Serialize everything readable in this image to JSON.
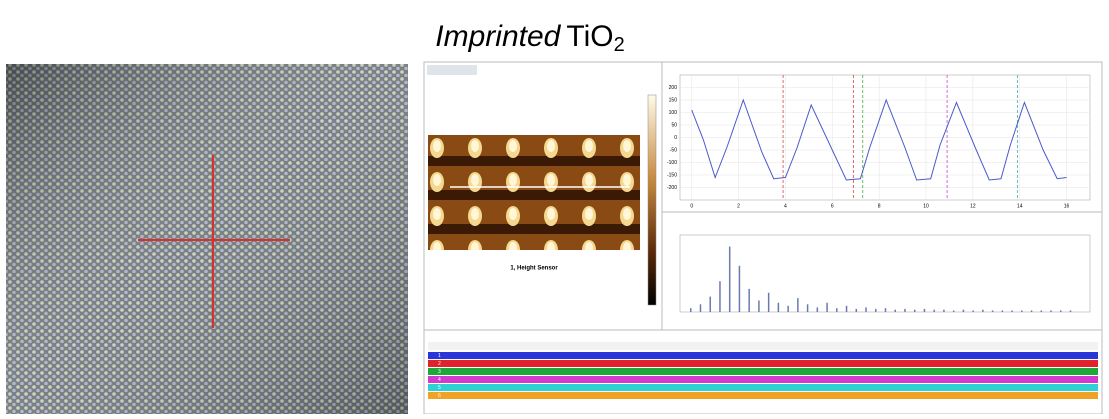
{
  "title": "Imprinted",
  "title_formula": "TiO",
  "title_subscript": "2",
  "afm_image": {
    "caption": "1, Height Sensor"
  },
  "chart_data": [
    {
      "type": "line",
      "color": "#4a5ac8",
      "x": [
        0,
        0.5,
        1,
        1.5,
        2.2,
        3,
        3.5,
        4,
        4.5,
        5.1,
        6,
        6.6,
        7.2,
        7.6,
        8.3,
        9.1,
        9.6,
        10.2,
        10.6,
        11.3,
        12.1,
        12.7,
        13.2,
        13.6,
        14.2,
        15,
        15.6,
        16
      ],
      "values": [
        110,
        -10,
        -160,
        -40,
        150,
        -60,
        -165,
        -160,
        -40,
        130,
        -50,
        -170,
        -165,
        -40,
        150,
        -40,
        -170,
        -165,
        -30,
        140,
        -40,
        -170,
        -165,
        -30,
        140,
        -50,
        -165,
        -160
      ],
      "xlim": [
        -0.5,
        17
      ],
      "ylim": [
        -250,
        250
      ],
      "xticks": [
        0,
        2,
        4,
        6,
        8,
        10,
        12,
        14,
        16
      ],
      "yticks": [
        200,
        150,
        100,
        50,
        0,
        -50,
        -100,
        -150,
        -200
      ],
      "grid": true
    },
    {
      "type": "bar",
      "color": "#6a7ab0",
      "values": [
        0.05,
        0.1,
        0.2,
        0.4,
        0.85,
        0.6,
        0.3,
        0.15,
        0.25,
        0.12,
        0.08,
        0.18,
        0.1,
        0.06,
        0.12,
        0.05,
        0.08,
        0.04,
        0.06,
        0.04,
        0.05,
        0.03,
        0.04,
        0.03,
        0.04,
        0.03,
        0.03,
        0.02,
        0.03,
        0.02,
        0.03,
        0.02,
        0.02,
        0.02,
        0.02,
        0.02,
        0.02,
        0.02,
        0.02,
        0.02
      ],
      "ylim": [
        0,
        1
      ],
      "grid": true
    }
  ],
  "table": {
    "rows": [
      {
        "label": "1",
        "color": "#2a36d8"
      },
      {
        "label": "2",
        "color": "#e0222c"
      },
      {
        "label": "3",
        "color": "#1ea83c"
      },
      {
        "label": "4",
        "color": "#d23ad0"
      },
      {
        "label": "5",
        "color": "#2ed2d2"
      },
      {
        "label": "6",
        "color": "#f0a226"
      }
    ]
  }
}
